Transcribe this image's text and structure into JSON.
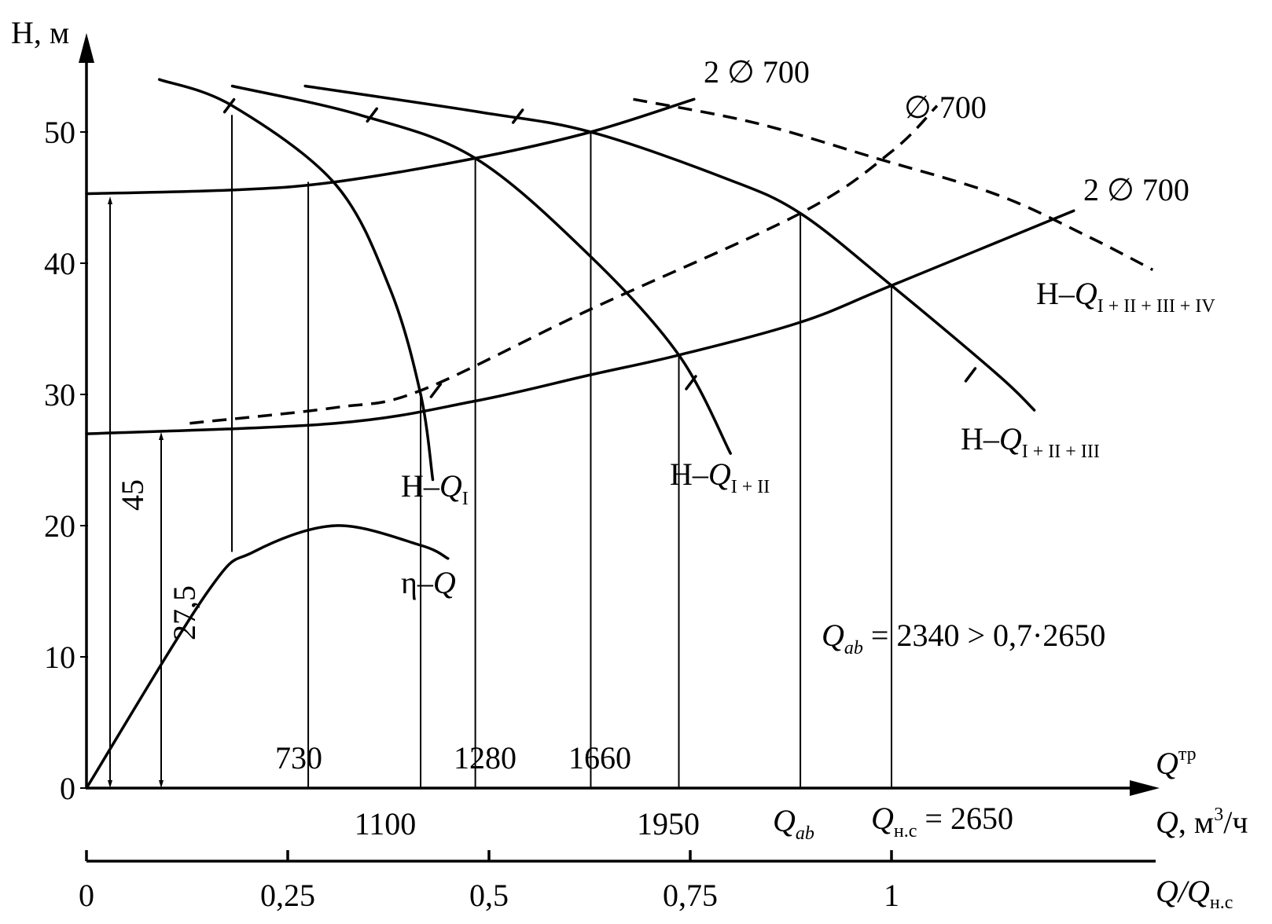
{
  "chart_data": {
    "type": "line",
    "axes": {
      "y": {
        "label": "Н, м",
        "ticks": [
          "0",
          "10",
          "20",
          "30",
          "40",
          "50"
        ],
        "ylim": [
          0,
          55
        ]
      },
      "x_label_flow": "Q, м³/ч",
      "x_label_req": "Qтр",
      "x2": {
        "label": "Q/Qн.с",
        "ticks": [
          "0",
          "0,25",
          "0,5",
          "0,75",
          "1"
        ]
      }
    },
    "pump_curves": [
      {
        "label": "Н–QI",
        "points": [
          [
            240,
            54
          ],
          [
            480,
            52
          ],
          [
            820,
            46
          ],
          [
            1000,
            38
          ],
          [
            1100,
            30
          ],
          [
            1140,
            23.5
          ]
        ]
      },
      {
        "label": "Н–QI + II",
        "points": [
          [
            480,
            53.5
          ],
          [
            900,
            51.3
          ],
          [
            1280,
            48
          ],
          [
            1660,
            40.5
          ],
          [
            1950,
            33
          ],
          [
            2120,
            25.5
          ]
        ]
      },
      {
        "label": "Н–QI + II + III",
        "points": [
          [
            720,
            53.5
          ],
          [
            1300,
            51.5
          ],
          [
            1660,
            50
          ],
          [
            2100,
            46.5
          ],
          [
            2350,
            43.8
          ],
          [
            2650,
            38.3
          ],
          [
            3000,
            31.5
          ],
          [
            3120,
            28.8
          ]
        ]
      },
      {
        "label": "Н–QI + II + III + IV",
        "points": [
          [
            1800,
            52.5
          ],
          [
            2200,
            50.7
          ],
          [
            2600,
            48
          ],
          [
            3000,
            45.2
          ],
          [
            3300,
            42
          ],
          [
            3510,
            39.5
          ]
        ]
      }
    ],
    "system_curves": [
      {
        "label": "2 ∅ 700",
        "points": [
          [
            0,
            45.3
          ],
          [
            500,
            45.6
          ],
          [
            820,
            46.2
          ],
          [
            1280,
            48
          ],
          [
            1660,
            50
          ],
          [
            2000,
            52.5
          ]
        ]
      },
      {
        "label": "∅ 700",
        "points": [
          [
            340,
            27.8
          ],
          [
            820,
            29
          ],
          [
            1100,
            30.3
          ],
          [
            1660,
            36.5
          ],
          [
            2350,
            43.8
          ],
          [
            2650,
            48.5
          ],
          [
            2800,
            52
          ]
        ]
      },
      {
        "label": "2 ∅ 700",
        "points": [
          [
            0,
            27
          ],
          [
            820,
            27.8
          ],
          [
            1280,
            29.5
          ],
          [
            1660,
            31.5
          ],
          [
            1950,
            33
          ],
          [
            2350,
            35.5
          ],
          [
            2650,
            38.3
          ],
          [
            3250,
            44
          ]
        ]
      }
    ],
    "efficiency_curve": {
      "label": "η–Q",
      "points": [
        [
          0,
          0
        ],
        [
          400,
          15
        ],
        [
          550,
          18
        ],
        [
          820,
          20
        ],
        [
          1100,
          18.5
        ],
        [
          1190,
          17.5
        ]
      ]
    },
    "dimensions": [
      "45",
      "27,5"
    ],
    "operating_points_labels": [
      "730",
      "1100",
      "1280",
      "1660",
      "1950",
      "Qab",
      "Qн.с = 2650"
    ],
    "annotation": "Qab = 2340 > 0,7·2650"
  }
}
